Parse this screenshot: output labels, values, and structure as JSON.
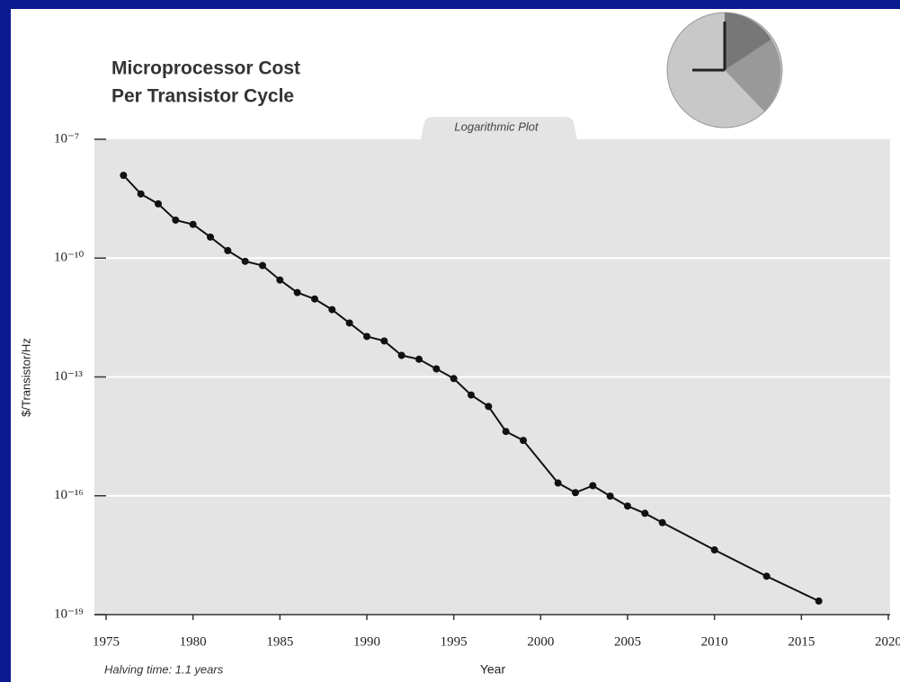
{
  "chart_data": {
    "type": "line",
    "title_lines": [
      "Microprocessor Cost",
      "Per Transistor Cycle"
    ],
    "annotation": "Logarithmic Plot",
    "note": "Halving time: 1.1 years",
    "xlabel": "Year",
    "ylabel": "$/Transistor/Hz",
    "log_y": true,
    "grid": true,
    "color": "#111111",
    "x": [
      1976,
      1977,
      1978,
      1979,
      1980,
      1981,
      1982,
      1983,
      1984,
      1985,
      1986,
      1987,
      1988,
      1989,
      1990,
      1991,
      1992,
      1993,
      1994,
      1995,
      1996,
      1997,
      1998,
      1999,
      2001,
      2002,
      2003,
      2004,
      2005,
      2006,
      2007,
      2010,
      2013,
      2016
    ],
    "values": [
      1.23e-08,
      4.17e-09,
      2.34e-09,
      9.1e-10,
      7.1e-10,
      3.4e-10,
      1.55e-10,
      8.3e-11,
      6.5e-11,
      2.8e-11,
      1.35e-11,
      9.3e-12,
      5e-12,
      2.3e-12,
      1.05e-12,
      8.1e-13,
      3.5e-13,
      2.8e-13,
      1.6e-13,
      9.1e-14,
      3.5e-14,
      1.8e-14,
      4.2e-15,
      2.5e-15,
      2.1e-16,
      1.2e-16,
      1.8e-16,
      9.8e-17,
      5.5e-17,
      3.6e-17,
      2.1e-17,
      4.3e-18,
      9.3e-19,
      2.2e-19
    ],
    "xlim": [
      1975,
      2020
    ],
    "xticks": [
      1975,
      1980,
      1985,
      1990,
      1995,
      2000,
      2005,
      2010,
      2015,
      2020
    ],
    "ylim": [
      1e-19,
      1e-07
    ],
    "yticks": [
      {
        "value": 1e-07,
        "label": "10⁻⁷"
      },
      {
        "value": 1e-10,
        "label": "10⁻¹⁰"
      },
      {
        "value": 1e-13,
        "label": "10⁻¹³"
      },
      {
        "value": 1e-16,
        "label": "10⁻¹⁶"
      },
      {
        "value": 1e-19,
        "label": "10⁻¹⁹"
      }
    ]
  }
}
